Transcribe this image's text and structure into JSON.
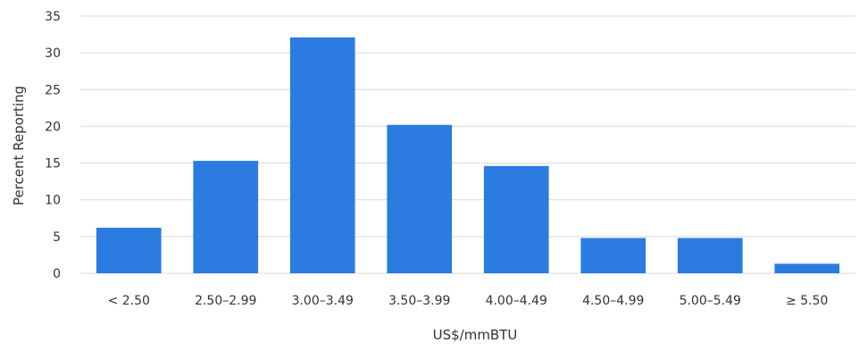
{
  "chart_data": {
    "type": "bar",
    "title": "",
    "xlabel": "US$/mmBTU",
    "ylabel": "Percent Reporting",
    "categories": [
      "< 2.50",
      "2.50–2.99",
      "3.00–3.49",
      "3.50–3.99",
      "4.00–4.49",
      "4.50–4.99",
      "5.00–5.49",
      "≥ 5.50"
    ],
    "values": [
      6.2,
      15.3,
      32.1,
      20.2,
      14.6,
      4.8,
      4.8,
      1.3
    ],
    "ylim": [
      0,
      35
    ],
    "yticks": [
      0,
      5,
      10,
      15,
      20,
      25,
      30,
      35
    ],
    "grid": true,
    "bar_color": "#2c7be0",
    "grid_color": "#d9d9d9"
  }
}
